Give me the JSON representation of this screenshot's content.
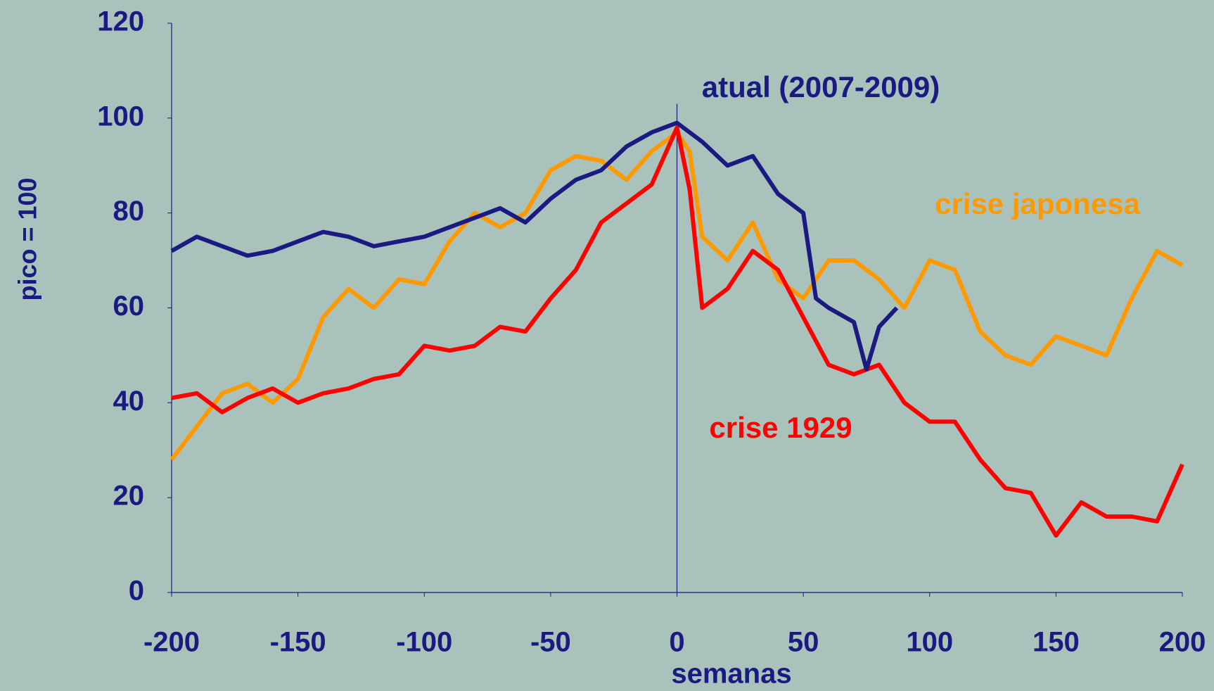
{
  "chart_data": {
    "type": "line",
    "xlabel": "semanas",
    "ylabel": "pico = 100",
    "xlim": [
      -200,
      200
    ],
    "xticks": [
      -200,
      -150,
      -100,
      -50,
      0,
      50,
      100,
      150,
      200
    ],
    "ylim": [
      0,
      120
    ],
    "yticks": [
      0,
      20,
      40,
      60,
      80,
      100,
      120
    ],
    "series": [
      {
        "name": "crise japonesa",
        "color": "#ff9900",
        "x": [
          -200,
          -190,
          -180,
          -170,
          -160,
          -150,
          -140,
          -130,
          -120,
          -110,
          -100,
          -90,
          -80,
          -70,
          -60,
          -50,
          -40,
          -30,
          -20,
          -10,
          0,
          5,
          10,
          20,
          30,
          40,
          50,
          60,
          70,
          80,
          90,
          100,
          110,
          120,
          130,
          140,
          150,
          160,
          170,
          180,
          190,
          200
        ],
        "values": [
          28,
          35,
          42,
          44,
          40,
          45,
          58,
          64,
          60,
          66,
          65,
          74,
          80,
          77,
          80,
          89,
          92,
          91,
          87,
          93,
          97,
          93,
          75,
          70,
          78,
          66,
          62,
          70,
          70,
          66,
          60,
          70,
          68,
          55,
          50,
          48,
          54,
          52,
          50,
          62,
          72,
          69
        ]
      },
      {
        "name": "crise 1929",
        "color": "#ff0000",
        "x": [
          -200,
          -190,
          -180,
          -170,
          -160,
          -150,
          -140,
          -130,
          -120,
          -110,
          -100,
          -90,
          -80,
          -70,
          -60,
          -50,
          -40,
          -30,
          -20,
          -10,
          0,
          5,
          10,
          15,
          20,
          30,
          40,
          50,
          60,
          70,
          80,
          90,
          100,
          110,
          120,
          130,
          140,
          150,
          160,
          170,
          180,
          190,
          200
        ],
        "values": [
          41,
          42,
          38,
          41,
          43,
          40,
          42,
          43,
          45,
          46,
          52,
          51,
          52,
          56,
          55,
          62,
          68,
          78,
          82,
          86,
          98,
          85,
          60,
          62,
          64,
          72,
          68,
          58,
          48,
          46,
          48,
          40,
          36,
          36,
          28,
          22,
          21,
          12,
          19,
          16,
          16,
          15,
          27
        ]
      },
      {
        "name": "atual (2007-2009)",
        "color": "#1a1a80",
        "x": [
          -200,
          -190,
          -180,
          -170,
          -160,
          -150,
          -140,
          -130,
          -120,
          -110,
          -100,
          -90,
          -80,
          -70,
          -60,
          -50,
          -40,
          -30,
          -20,
          -10,
          0,
          10,
          20,
          30,
          40,
          50,
          55,
          60,
          70,
          75,
          80,
          87
        ],
        "values": [
          72,
          75,
          73,
          71,
          72,
          74,
          76,
          75,
          73,
          74,
          75,
          77,
          79,
          81,
          78,
          83,
          87,
          89,
          94,
          97,
          99,
          95,
          90,
          92,
          84,
          80,
          62,
          60,
          57,
          47,
          56,
          60
        ]
      }
    ]
  }
}
